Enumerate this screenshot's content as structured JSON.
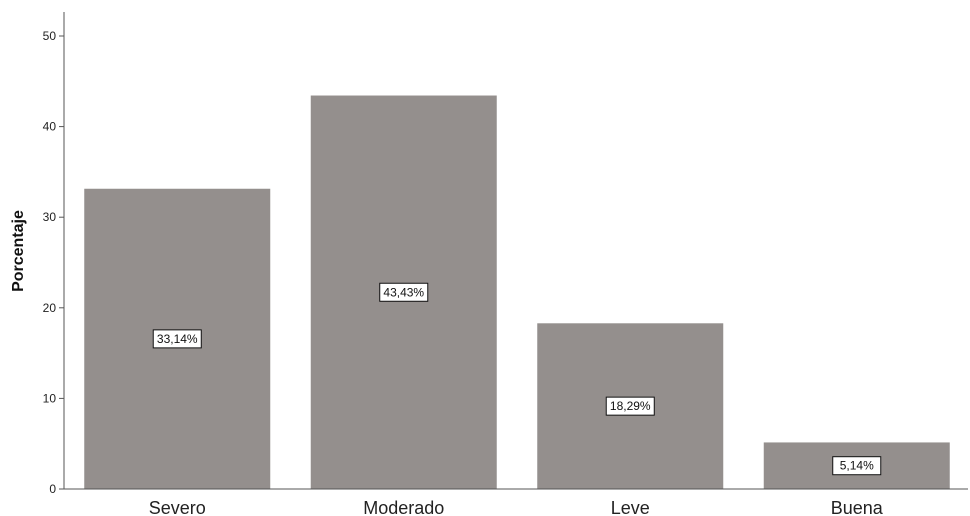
{
  "chart_data": {
    "type": "bar",
    "categories": [
      "Severo",
      "Moderado",
      "Leve",
      "Buena"
    ],
    "values": [
      33.14,
      43.43,
      18.29,
      5.14
    ],
    "data_labels": [
      "33,14%",
      "43,43%",
      "18,29%",
      "5,14%"
    ],
    "title": "",
    "xlabel": "",
    "ylabel": "Porcentaje",
    "ylim": [
      0,
      52
    ],
    "yticks": [
      0,
      10,
      20,
      30,
      40,
      50
    ],
    "ytick_labels": [
      "0",
      "10",
      "20",
      "30",
      "40",
      "50"
    ],
    "grid": false,
    "legend": "none",
    "colors": {
      "bar": "#948f8d",
      "axis": "#555555",
      "label_box_fill": "#ffffff",
      "label_box_stroke": "#111111"
    }
  }
}
